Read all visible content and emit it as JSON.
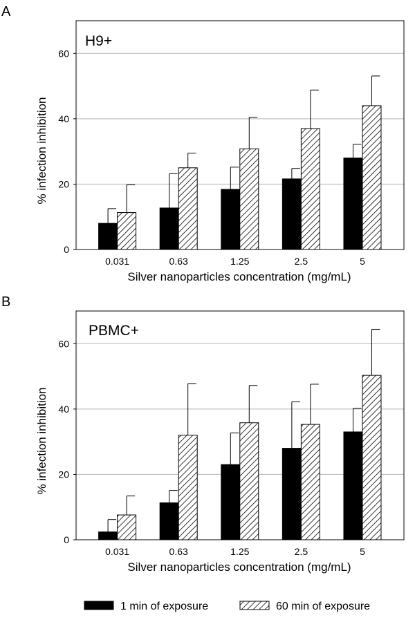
{
  "chart_data": [
    {
      "type": "bar",
      "panel_letter": "A",
      "title": "H9+",
      "categories": [
        "0.031",
        "0.63",
        "1.25",
        "2.5",
        "5"
      ],
      "xlabel": "Silver nanoparticles concentration (mg/mL)",
      "ylabel": "% infection inhibition",
      "ylim": [
        0,
        70
      ],
      "yticks": [
        "0",
        "20",
        "40",
        "60"
      ],
      "grid": true,
      "series": [
        {
          "name": "1 min of exposure",
          "style": "solid",
          "color": "#000000",
          "values": [
            8,
            12.7,
            18.4,
            21.6,
            28
          ],
          "errors": [
            4.5,
            10.5,
            6.8,
            3.2,
            4.2
          ]
        },
        {
          "name": "60 min of exposure",
          "style": "hatched",
          "color": "#000000",
          "values": [
            11.3,
            25,
            30.8,
            37,
            44
          ],
          "errors": [
            8.5,
            4.5,
            9.7,
            11.8,
            9.1
          ]
        }
      ]
    },
    {
      "type": "bar",
      "panel_letter": "B",
      "title": "PBMC+",
      "categories": [
        "0.031",
        "0.63",
        "1.25",
        "2.5",
        "5"
      ],
      "xlabel": "Silver nanoparticles concentration (mg/mL)",
      "ylabel": "% infection inhibition",
      "ylim": [
        0,
        70
      ],
      "yticks": [
        "0",
        "20",
        "40",
        "60"
      ],
      "grid": true,
      "series": [
        {
          "name": "1 min of exposure",
          "style": "solid",
          "color": "#000000",
          "values": [
            2.4,
            11.3,
            23,
            28,
            33
          ],
          "errors": [
            3.8,
            3.8,
            9.7,
            14.2,
            7.2
          ]
        },
        {
          "name": "60 min of exposure",
          "style": "hatched",
          "color": "#000000",
          "values": [
            7.6,
            32,
            35.8,
            35.3,
            50.3
          ],
          "errors": [
            5.8,
            15.8,
            11.4,
            12.3,
            14.1
          ]
        }
      ]
    }
  ],
  "legend": {
    "placement": "bottom",
    "items": [
      {
        "label": "1 min of exposure",
        "style": "solid"
      },
      {
        "label": "60 min of exposure",
        "style": "hatched"
      }
    ]
  }
}
